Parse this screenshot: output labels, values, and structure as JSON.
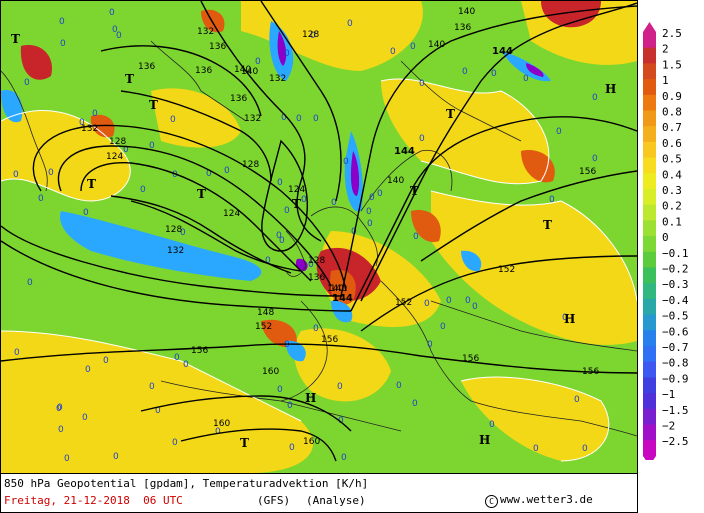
{
  "map": {
    "contour_labels": [
      "132",
      "136",
      "140",
      "136",
      "128",
      "132",
      "124",
      "128",
      "128",
      "124",
      "128",
      "132",
      "128",
      "136",
      "140",
      "144",
      "148",
      "152",
      "156",
      "160",
      "160",
      "140",
      "144",
      "152",
      "156",
      "152",
      "156",
      "140",
      "144",
      "132",
      "136",
      "140",
      "124",
      "140",
      "136",
      "132",
      "136",
      "140",
      "156",
      "156",
      "160"
    ],
    "pressure_centers": [
      "T",
      "T",
      "T",
      "T",
      "T",
      "T",
      "T",
      "T",
      "T",
      "T",
      "H",
      "H",
      "H",
      "H"
    ],
    "colors": {
      "strong_cold": "#8a00c8",
      "cold": "#2aa8ff",
      "neutral": "#7dd630",
      "warm": "#f3d817",
      "hot": "#c8252a"
    }
  },
  "scale": {
    "labels": [
      "2.5",
      "2",
      "1.5",
      "1",
      "0.9",
      "0.8",
      "0.7",
      "0.6",
      "0.5",
      "0.4",
      "0.3",
      "0.2",
      "0.1",
      "0",
      "−0.1",
      "−0.2",
      "−0.3",
      "−0.4",
      "−0.5",
      "−0.6",
      "−0.7",
      "−0.8",
      "−0.9",
      "−1",
      "−1.5",
      "−2",
      "−2.5"
    ],
    "colors": [
      "#d0208a",
      "#c83030",
      "#d24a1e",
      "#e05a10",
      "#ec7a10",
      "#f09818",
      "#f4b01c",
      "#f8c820",
      "#f8dc20",
      "#ecec20",
      "#d8ee28",
      "#bce830",
      "#9ce034",
      "#7cd834",
      "#5ccc3c",
      "#3cc05c",
      "#30b880",
      "#28a8a8",
      "#2898d0",
      "#2880ec",
      "#3070f4",
      "#3c58f0",
      "#4040e0",
      "#5030d8",
      "#7820d0",
      "#a010c8",
      "#c808c0"
    ]
  },
  "footer": {
    "title": "850 hPa Geopotential [gpdam], Temperaturadvektion [K/h]",
    "date": "Freitag, 21-12-2018  06 UTC",
    "model": "(GFS)",
    "mode": "(Analyse)",
    "copyright": "www.wetter3.de"
  }
}
